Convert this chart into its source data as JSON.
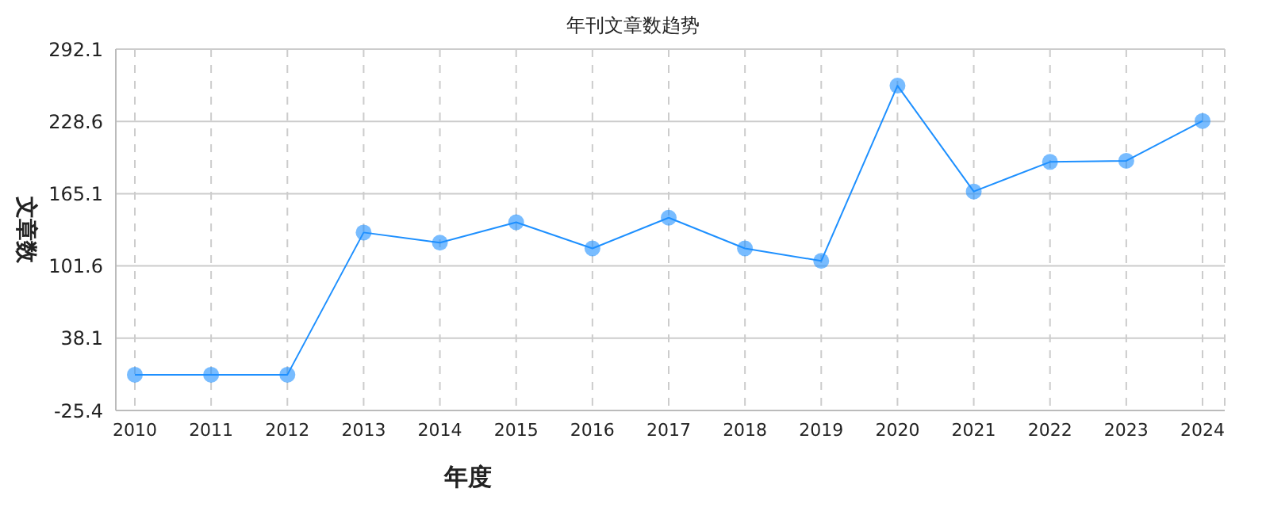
{
  "chart_data": {
    "type": "line",
    "title": "年刊文章数趋势",
    "xlabel": "年度",
    "ylabel": "文章数",
    "categories": [
      "2010",
      "2011",
      "2012",
      "2013",
      "2014",
      "2015",
      "2016",
      "2017",
      "2018",
      "2019",
      "2020",
      "2021",
      "2022",
      "2023",
      "2024"
    ],
    "series": [
      {
        "color": "#1e90ff",
        "values": [
          6,
          6,
          6,
          131,
          122,
          140,
          117,
          144,
          117,
          106,
          260,
          167,
          193,
          194,
          229
        ]
      }
    ],
    "ylim": [
      -25.4,
      292.1
    ],
    "yticks": [
      -25.4,
      38.1,
      101.6,
      165.1,
      228.6,
      292.1
    ],
    "grid": true,
    "marker": "circle",
    "line_style": "solid",
    "legend": false
  }
}
